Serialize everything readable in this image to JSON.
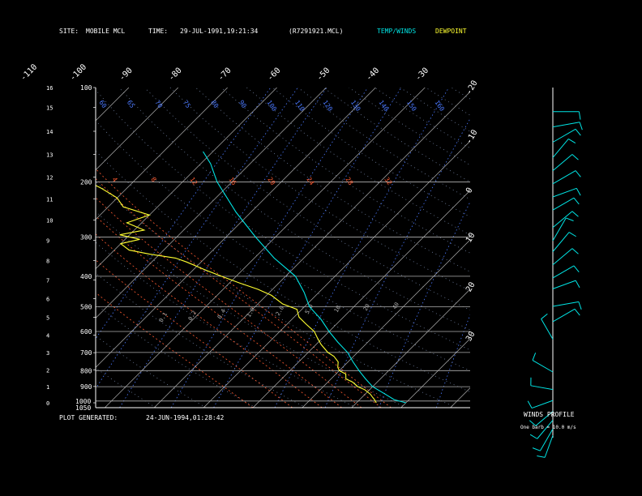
{
  "header": {
    "site_label": "SITE:",
    "site_value": "MOBILE MCL",
    "time_label": "TIME:",
    "time_value": "29-JUL-1991,19:21:34",
    "file": "(R7291921.MCL)",
    "legend_temp": "TEMP/WINDS",
    "legend_dew": "DEWPOINT"
  },
  "footer": {
    "generated_label": "PLOT GENERATED:",
    "generated_value": "24-JUN-1994,01:28:42"
  },
  "winds_panel": {
    "title": "WINDS PROFILE",
    "note": "One barb = 10.0 m/s"
  },
  "colors": {
    "temp": "#00e5e5",
    "dewpoint": "#ffff30",
    "isobar": "#b0b0b0",
    "isotherm": "#b0b0b0",
    "mixing_ratio": "#4a78ff",
    "dry_adiabat": "#6f7f9f",
    "moist_adiabat": "#ff5a30"
  },
  "chart_data": {
    "type": "line",
    "xlabel": "",
    "ylabel": "",
    "pressure_levels": [
      100,
      200,
      300,
      400,
      500,
      600,
      700,
      800,
      900,
      1000,
      1050
    ],
    "height_ticks_km": [
      0,
      1,
      2,
      3,
      4,
      5,
      6,
      7,
      8,
      9,
      10,
      11,
      12,
      13,
      14,
      15,
      16
    ],
    "temperature_ticks_c": [
      -110,
      -100,
      -90,
      -80,
      -70,
      -60,
      -50,
      -40,
      -30,
      -20,
      -10,
      0,
      10,
      20,
      30
    ],
    "mixing_ratio_labels": [
      "0.1",
      "0.2",
      "0.4",
      "1.0",
      "2.0",
      "5.0",
      "10",
      "20",
      "40"
    ],
    "theta_labels": [
      "60",
      "65",
      "70",
      "75",
      "80",
      "90",
      "100",
      "110",
      "120",
      "130",
      "140",
      "150",
      "160"
    ],
    "theta_e_labels": [
      "4",
      "8",
      "12",
      "16",
      "20",
      "24",
      "28",
      "32"
    ],
    "series": [
      {
        "name": "TEMP/WINDS",
        "points": [
          [
            1013,
            30
          ],
          [
            990,
            27
          ],
          [
            950,
            24
          ],
          [
            900,
            20
          ],
          [
            850,
            17
          ],
          [
            800,
            14
          ],
          [
            750,
            11
          ],
          [
            700,
            8
          ],
          [
            650,
            4
          ],
          [
            600,
            0
          ],
          [
            550,
            -4
          ],
          [
            500,
            -9
          ],
          [
            450,
            -13
          ],
          [
            400,
            -18
          ],
          [
            350,
            -26
          ],
          [
            300,
            -34
          ],
          [
            250,
            -43
          ],
          [
            200,
            -53
          ],
          [
            175,
            -58
          ],
          [
            160,
            -62
          ]
        ]
      },
      {
        "name": "DEWPOINT",
        "points": [
          [
            1013,
            24
          ],
          [
            990,
            23
          ],
          [
            970,
            22
          ],
          [
            950,
            21
          ],
          [
            920,
            19
          ],
          [
            900,
            17
          ],
          [
            870,
            15
          ],
          [
            850,
            13
          ],
          [
            820,
            12
          ],
          [
            800,
            10
          ],
          [
            780,
            9
          ],
          [
            750,
            8
          ],
          [
            720,
            6
          ],
          [
            700,
            4
          ],
          [
            660,
            1
          ],
          [
            630,
            -1
          ],
          [
            600,
            -3
          ],
          [
            570,
            -6
          ],
          [
            540,
            -9
          ],
          [
            510,
            -11
          ],
          [
            490,
            -15
          ],
          [
            460,
            -19
          ],
          [
            440,
            -23
          ],
          [
            420,
            -28
          ],
          [
            400,
            -33
          ],
          [
            380,
            -38
          ],
          [
            360,
            -43
          ],
          [
            350,
            -46
          ],
          [
            340,
            -52
          ],
          [
            330,
            -57
          ],
          [
            315,
            -60
          ],
          [
            305,
            -57
          ],
          [
            295,
            -62
          ],
          [
            285,
            -58
          ],
          [
            270,
            -63
          ],
          [
            255,
            -60
          ],
          [
            240,
            -67
          ],
          [
            225,
            -70
          ],
          [
            210,
            -75
          ],
          [
            200,
            -79
          ]
        ]
      }
    ],
    "wind_profile": [
      {
        "height_km": 0.1,
        "dir_deg": 200,
        "speed_ms": 4
      },
      {
        "height_km": 0.4,
        "dir_deg": 210,
        "speed_ms": 6
      },
      {
        "height_km": 0.8,
        "dir_deg": 220,
        "speed_ms": 5
      },
      {
        "height_km": 1.2,
        "dir_deg": 230,
        "speed_ms": 3
      },
      {
        "height_km": 1.7,
        "dir_deg": 250,
        "speed_ms": 3
      },
      {
        "height_km": 2.2,
        "dir_deg": 280,
        "speed_ms": 3
      },
      {
        "height_km": 3.0,
        "dir_deg": 300,
        "speed_ms": 4
      },
      {
        "height_km": 4.5,
        "dir_deg": 330,
        "speed_ms": 4
      },
      {
        "height_km": 5.3,
        "dir_deg": 60,
        "speed_ms": 6
      },
      {
        "height_km": 6.0,
        "dir_deg": 80,
        "speed_ms": 7
      },
      {
        "height_km": 6.8,
        "dir_deg": 70,
        "speed_ms": 5
      },
      {
        "height_km": 7.3,
        "dir_deg": 60,
        "speed_ms": 5
      },
      {
        "height_km": 7.9,
        "dir_deg": 50,
        "speed_ms": 6
      },
      {
        "height_km": 8.5,
        "dir_deg": 40,
        "speed_ms": 6
      },
      {
        "height_km": 9.0,
        "dir_deg": 30,
        "speed_ms": 7
      },
      {
        "height_km": 9.6,
        "dir_deg": 50,
        "speed_ms": 6
      },
      {
        "height_km": 10.4,
        "dir_deg": 60,
        "speed_ms": 5
      },
      {
        "height_km": 11.0,
        "dir_deg": 70,
        "speed_ms": 6
      },
      {
        "height_km": 11.6,
        "dir_deg": 60,
        "speed_ms": 7
      },
      {
        "height_km": 12.2,
        "dir_deg": 50,
        "speed_ms": 6
      },
      {
        "height_km": 12.8,
        "dir_deg": 40,
        "speed_ms": 5
      },
      {
        "height_km": 13.5,
        "dir_deg": 60,
        "speed_ms": 7
      },
      {
        "height_km": 14.2,
        "dir_deg": 80,
        "speed_ms": 8
      },
      {
        "height_km": 14.9,
        "dir_deg": 90,
        "speed_ms": 7
      }
    ]
  }
}
